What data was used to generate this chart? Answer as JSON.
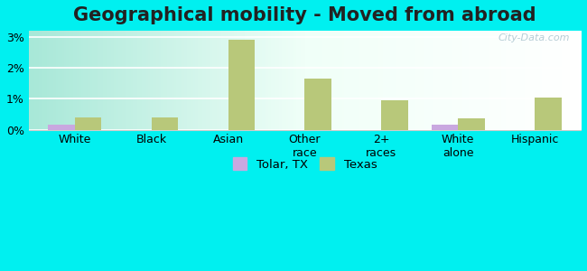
{
  "title": "Geographical mobility - Moved from abroad",
  "categories": [
    "White",
    "Black",
    "Asian",
    "Other\nrace",
    "2+\nraces",
    "White\nalone",
    "Hispanic"
  ],
  "tolar_values": [
    0.15,
    0.0,
    0.0,
    0.0,
    0.0,
    0.15,
    0.0
  ],
  "texas_values": [
    0.4,
    0.4,
    2.9,
    1.65,
    0.95,
    0.38,
    1.05
  ],
  "tolar_color": "#c9a8e0",
  "texas_color": "#b8c87a",
  "bar_width": 0.35,
  "ylim": [
    0,
    3.2
  ],
  "yticks": [
    0,
    1,
    2,
    3
  ],
  "ytick_labels": [
    "0%",
    "1%",
    "2%",
    "3%"
  ],
  "fig_bg_color": "#00f0f0",
  "title_fontsize": 15,
  "axis_fontsize": 9,
  "legend_labels": [
    "Tolar, TX",
    "Texas"
  ],
  "watermark": "City-Data.com"
}
